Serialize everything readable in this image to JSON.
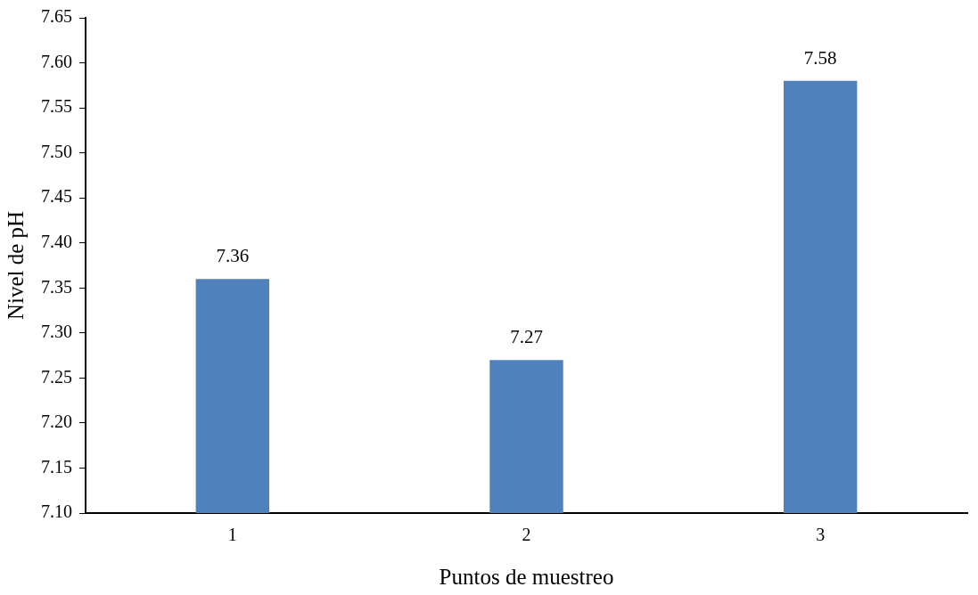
{
  "chart_data": {
    "type": "bar",
    "xlabel": "Puntos de muestreo",
    "ylabel": "Nivel de pH",
    "categories": [
      "1",
      "2",
      "3"
    ],
    "values": [
      7.36,
      7.27,
      7.58
    ],
    "color": "#4f81bd",
    "ylim": [
      7.1,
      7.65
    ],
    "yticks": [
      {
        "value": 7.1,
        "label": "7.10"
      },
      {
        "value": 7.15,
        "label": "7.15"
      },
      {
        "value": 7.2,
        "label": "7.20"
      },
      {
        "value": 7.25,
        "label": "7.25"
      },
      {
        "value": 7.3,
        "label": "7.30"
      },
      {
        "value": 7.35,
        "label": "7.35"
      },
      {
        "value": 7.4,
        "label": "7.40"
      },
      {
        "value": 7.45,
        "label": "7.45"
      },
      {
        "value": 7.5,
        "label": "7.50"
      },
      {
        "value": 7.55,
        "label": "7.55"
      },
      {
        "value": 7.6,
        "label": "7.60"
      },
      {
        "value": 7.65,
        "label": "7.65"
      }
    ],
    "grid": false,
    "legend": false,
    "data_labels": true
  }
}
